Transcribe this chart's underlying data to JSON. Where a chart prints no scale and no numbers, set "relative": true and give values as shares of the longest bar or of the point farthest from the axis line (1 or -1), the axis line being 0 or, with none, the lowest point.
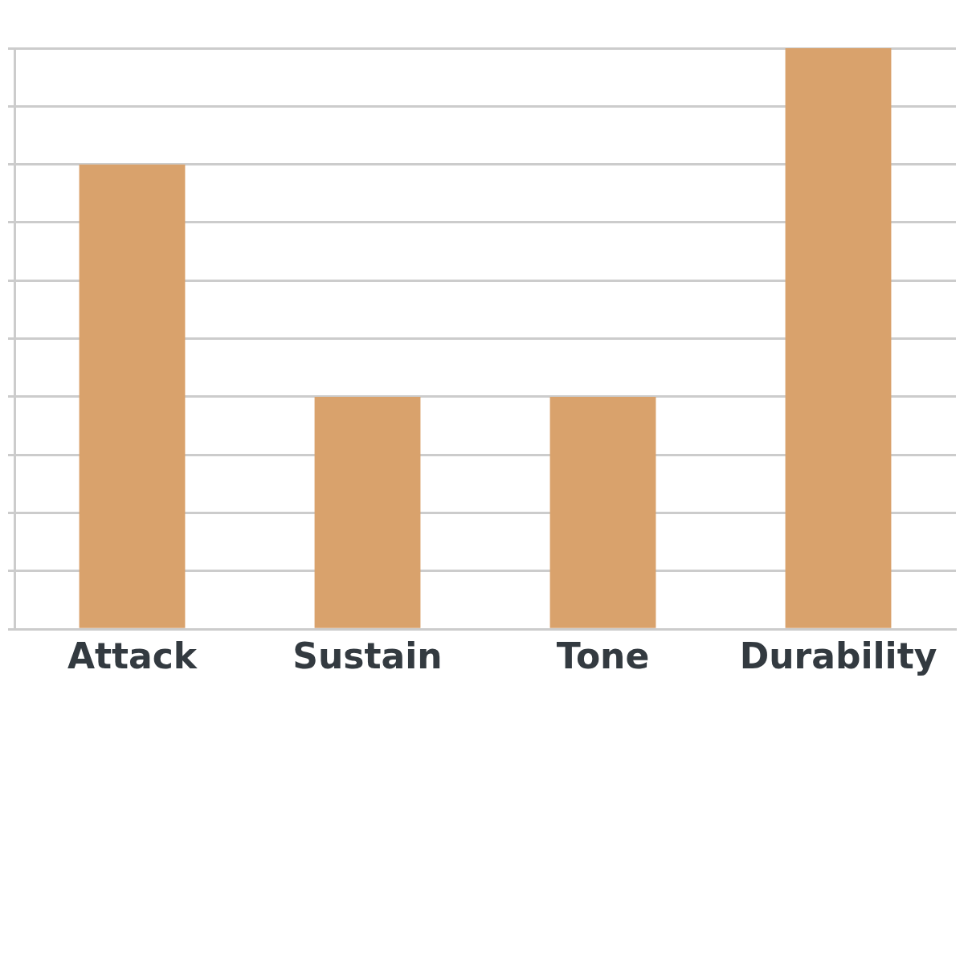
{
  "chart_data": {
    "type": "bar",
    "relative": true,
    "categories": [
      "Attack",
      "Sustain",
      "Tone",
      "Durability"
    ],
    "values": [
      0.8,
      0.4,
      0.4,
      1
    ],
    "color": "#d9a26c",
    "grid": "y",
    "legend": false
  }
}
